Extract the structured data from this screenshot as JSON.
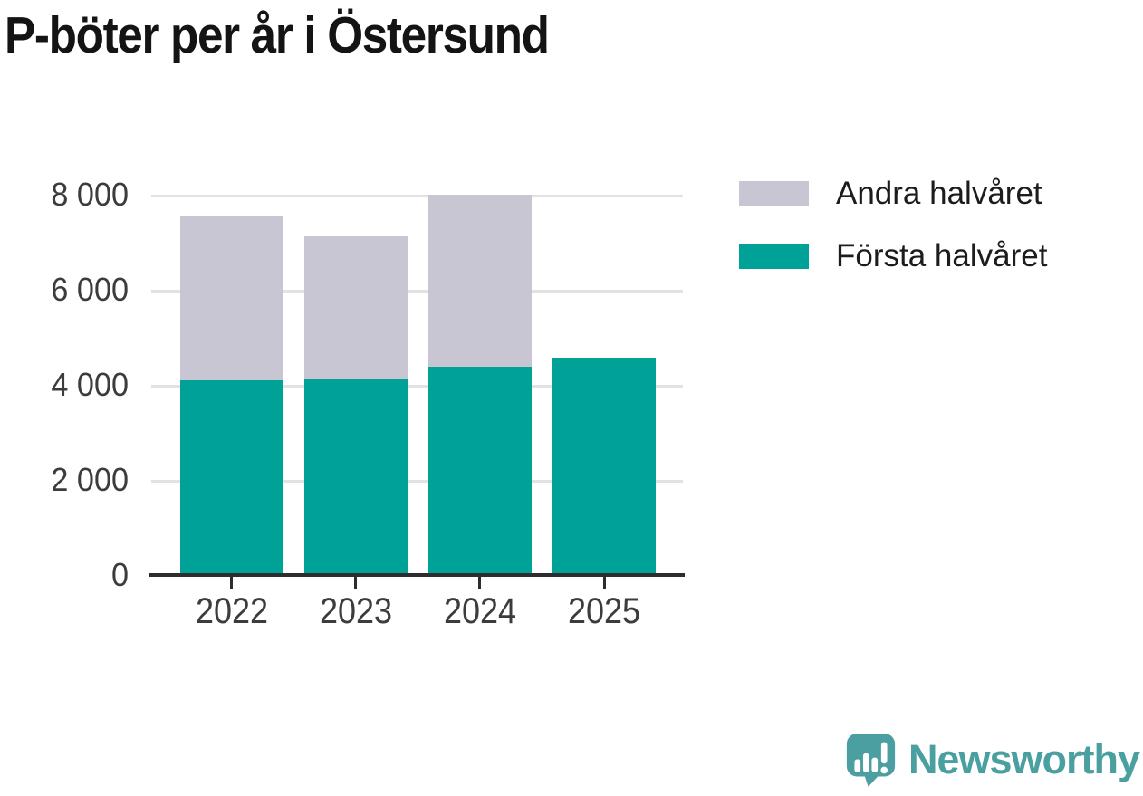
{
  "title": "P-böter per år i Östersund",
  "colors": {
    "first_half_teal": "#00a298",
    "second_half_gray": "#c8c6d2",
    "axis": "#2d2d2d",
    "gridline": "#e2e2e2",
    "tick_label": "#3c3c3c",
    "title_text": "#141414",
    "logo_teal": "#4aa0a0"
  },
  "legend": {
    "items": [
      {
        "label": "Andra halvåret",
        "color": "#c8c6d2"
      },
      {
        "label": "Första halvåret",
        "color": "#00a298"
      }
    ]
  },
  "chart_data": {
    "type": "bar",
    "stacked": true,
    "title": "P-böter per år i Östersund",
    "categories": [
      "2022",
      "2023",
      "2024",
      "2025"
    ],
    "series": [
      {
        "name": "Första halvåret",
        "color": "#00a298",
        "values": [
          4110,
          4150,
          4400,
          4600
        ]
      },
      {
        "name": "Andra halvåret",
        "color": "#c8c6d2",
        "values": [
          3450,
          2990,
          3620,
          0
        ]
      }
    ],
    "totals": [
      7560,
      7140,
      8020,
      4600
    ],
    "xlabel": "",
    "ylabel": "",
    "ylim": [
      0,
      8500
    ],
    "yticks": [
      {
        "value": 0,
        "label": "0"
      },
      {
        "value": 2000,
        "label": "2 000"
      },
      {
        "value": 4000,
        "label": "4 000"
      },
      {
        "value": 6000,
        "label": "6 000"
      },
      {
        "value": 8000,
        "label": "8 000"
      }
    ],
    "grid": "horizontal",
    "legend_position": "right-top"
  },
  "branding": {
    "logo_text": "Newsworthy"
  }
}
